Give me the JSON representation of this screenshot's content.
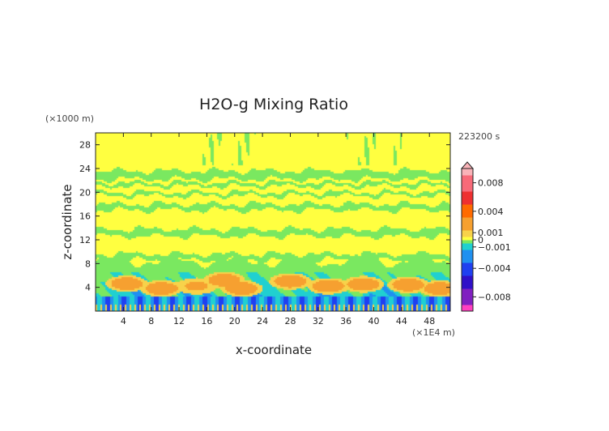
{
  "chart_data": {
    "type": "heatmap",
    "title": "H2O-g Mixing Ratio",
    "xlabel": "x-coordinate",
    "ylabel": "z-coordinate",
    "x_unit": "(×1E4 m)",
    "y_unit": "(×1000 m)",
    "time_label": "223200 s",
    "xlim": [
      0,
      51
    ],
    "ylim": [
      0,
      30
    ],
    "x_ticks": [
      4,
      8,
      12,
      16,
      20,
      24,
      28,
      32,
      36,
      40,
      44,
      48
    ],
    "y_ticks": [
      4,
      8,
      12,
      16,
      20,
      24,
      28
    ],
    "colorbar": {
      "min": -0.01,
      "max": 0.01,
      "tick_values": [
        0.008,
        0.004,
        0.001,
        0,
        -0.001,
        -0.004,
        -0.008
      ],
      "tick_labels": [
        "0.008",
        "0.004",
        "0.001",
        "0",
        "−0.001",
        "−0.004",
        "−0.008"
      ],
      "colors": [
        {
          "value": 0.01,
          "color": "#f9b3b8"
        },
        {
          "value": 0.008,
          "color": "#f76a78"
        },
        {
          "value": 0.006,
          "color": "#ee3030"
        },
        {
          "value": 0.004,
          "color": "#ff6a00"
        },
        {
          "value": 0.002,
          "color": "#f6a030"
        },
        {
          "value": 0.001,
          "color": "#f8d24a"
        },
        {
          "value": 0.0003,
          "color": "#ffff40"
        },
        {
          "value": 0,
          "color": "#c8f060"
        },
        {
          "value": -0.0003,
          "color": "#7ae860"
        },
        {
          "value": -0.001,
          "color": "#20d0d0"
        },
        {
          "value": -0.002,
          "color": "#2090f0"
        },
        {
          "value": -0.004,
          "color": "#2040f0"
        },
        {
          "value": -0.006,
          "color": "#3010c8"
        },
        {
          "value": -0.008,
          "color": "#8020c0"
        },
        {
          "value": -0.01,
          "color": "#ff40c0"
        }
      ]
    },
    "field_summary": {
      "upper_layer_value": 0.0002,
      "bands": [
        {
          "z_min": 8.6,
          "z_max": 9.6,
          "value": -0.0003
        },
        {
          "z_min": 12.6,
          "z_max": 13.8,
          "value": -0.0003
        },
        {
          "z_min": 17.0,
          "z_max": 18.0,
          "value": -0.0003
        },
        {
          "z_min": 19.4,
          "z_max": 20.0,
          "value": -0.0003
        },
        {
          "z_min": 21.0,
          "z_max": 21.6,
          "value": -0.0003
        },
        {
          "z_min": 22.2,
          "z_max": 23.6,
          "value": -0.0003
        }
      ],
      "blobs": [
        {
          "x": 4.5,
          "z": 4.6,
          "value": 0.003
        },
        {
          "x": 9.5,
          "z": 3.8,
          "value": 0.003
        },
        {
          "x": 14.5,
          "z": 4.2,
          "value": 0.002
        },
        {
          "x": 18.5,
          "z": 5.2,
          "value": 0.003
        },
        {
          "x": 21.0,
          "z": 3.8,
          "value": 0.003
        },
        {
          "x": 28.0,
          "z": 5.0,
          "value": 0.003
        },
        {
          "x": 33.5,
          "z": 4.2,
          "value": 0.003
        },
        {
          "x": 38.5,
          "z": 4.5,
          "value": 0.003
        },
        {
          "x": 45.0,
          "z": 4.4,
          "value": 0.003
        },
        {
          "x": 49.5,
          "z": 3.8,
          "value": 0.003
        }
      ]
    }
  },
  "colors": {
    "axis": "#222222",
    "background": "#ffffff"
  }
}
